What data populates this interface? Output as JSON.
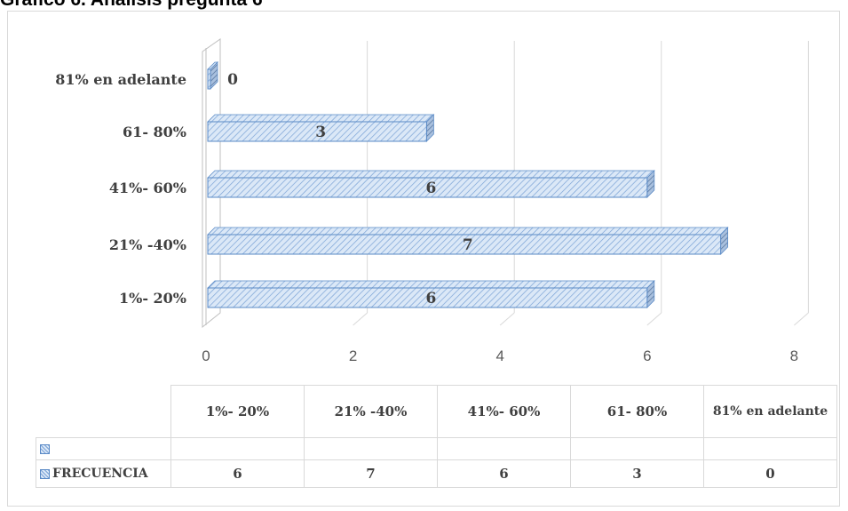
{
  "page_title": "Grafico 6. Análisis pregunta 6",
  "colors": {
    "bar_fill": "#dbe8f7",
    "bar_edge": "#5a8ac6",
    "hatch": "#7aa2d6",
    "grid": "#d9d9d9",
    "axis_text": "#595959"
  },
  "chart_data": {
    "type": "bar",
    "orientation": "horizontal",
    "style": "3d-clustered-hatched",
    "categories": [
      "1%- 20%",
      "21% -40%",
      "41%- 60%",
      "61- 80%",
      "81% en adelante"
    ],
    "series": [
      {
        "name": "FRECUENCIA",
        "values": [
          6,
          7,
          6,
          3,
          0
        ]
      }
    ],
    "data_labels": [
      "6",
      "7",
      "6",
      "3",
      "0"
    ],
    "x_ticks": [
      "0",
      "2",
      "4",
      "6",
      "8"
    ],
    "xlim": [
      0,
      8
    ],
    "grid": true,
    "legend": "data-table"
  },
  "data_table": {
    "headers": [
      "1%- 20%",
      "21% -40%",
      "41%- 60%",
      "61- 80%",
      "81% en adelante"
    ],
    "rows": [
      {
        "label": "",
        "values": [
          "",
          "",
          "",
          "",
          ""
        ]
      },
      {
        "label": "FRECUENCIA",
        "values": [
          "6",
          "7",
          "6",
          "3",
          "0"
        ]
      }
    ]
  }
}
